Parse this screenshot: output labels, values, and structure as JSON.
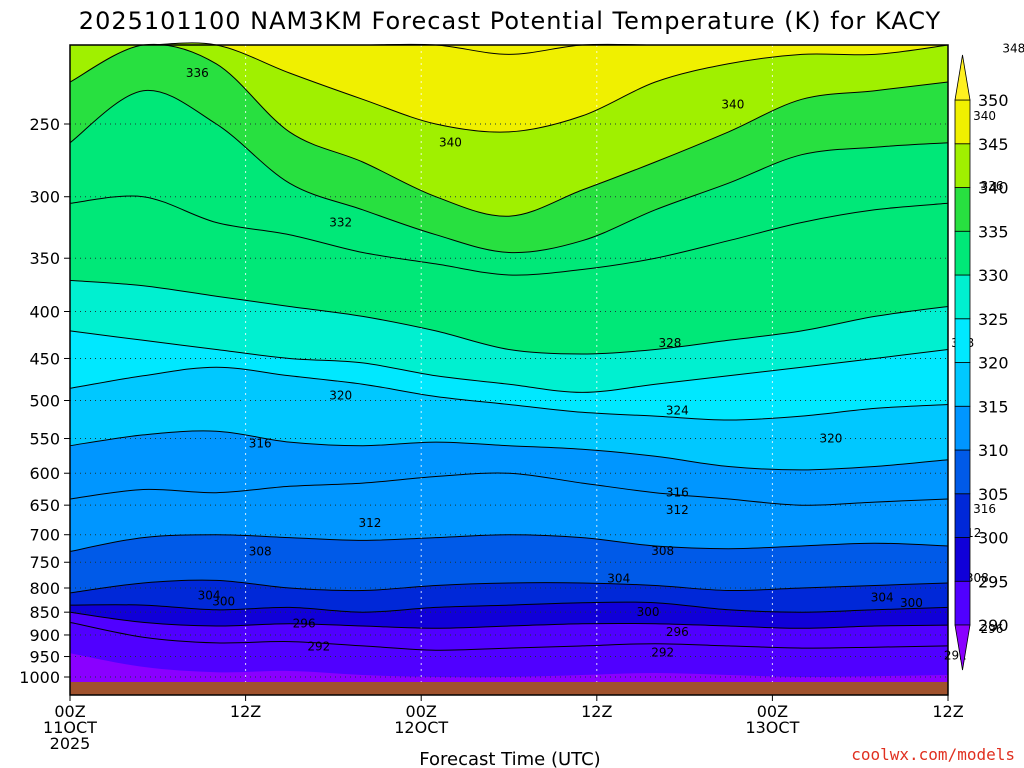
{
  "chart_data": {
    "type": "contour",
    "title": "2025101100 NAM3KM Forecast Potential Temperature (K) for KACY",
    "xlabel": "Forecast Time (UTC)",
    "credit": "coolwx.com/models",
    "x_ticks": [
      {
        "line1": "00Z",
        "line2": "11OCT",
        "line3": "2025"
      },
      {
        "line1": "12Z",
        "line2": "",
        "line3": ""
      },
      {
        "line1": "00Z",
        "line2": "12OCT",
        "line3": ""
      },
      {
        "line1": "12Z",
        "line2": "",
        "line3": ""
      },
      {
        "line1": "00Z",
        "line2": "13OCT",
        "line3": ""
      },
      {
        "line1": "12Z",
        "line2": "",
        "line3": ""
      }
    ],
    "x_range_hours": [
      0,
      60
    ],
    "y_label_unit": "hPa",
    "y_ticks": [
      250,
      300,
      350,
      400,
      450,
      500,
      550,
      600,
      650,
      700,
      750,
      800,
      850,
      900,
      950,
      1000
    ],
    "y_range": [
      200,
      1025
    ],
    "colorbar": {
      "levels": [
        290,
        295,
        300,
        305,
        310,
        315,
        320,
        325,
        330,
        335,
        340,
        345,
        350
      ],
      "labels": [
        "290",
        "295",
        "300",
        "305",
        "310",
        "315",
        "320",
        "325",
        "330",
        "335",
        "340",
        "345",
        "350"
      ],
      "colors": [
        "#8a00ff",
        "#5000ff",
        "#1000d8",
        "#0028d8",
        "#005ae8",
        "#0096ff",
        "#00c8ff",
        "#00e8ff",
        "#00f0d0",
        "#00e878",
        "#28e040",
        "#a0f000",
        "#f0f000",
        "#fff020"
      ]
    },
    "isotherms": [
      {
        "value": 292,
        "label": "292",
        "pressures": [
          872,
          905,
          918,
          915,
          925,
          935,
          930,
          925,
          920,
          925,
          930,
          928,
          925
        ]
      },
      {
        "value": 296,
        "label": "296",
        "pressures": [
          850,
          872,
          880,
          875,
          880,
          885,
          880,
          875,
          875,
          880,
          885,
          880,
          878
        ]
      },
      {
        "value": 300,
        "label": "300",
        "pressures": [
          835,
          835,
          845,
          840,
          850,
          840,
          835,
          830,
          830,
          845,
          850,
          845,
          840
        ]
      },
      {
        "value": 304,
        "label": "304",
        "pressures": [
          810,
          790,
          785,
          800,
          805,
          795,
          790,
          790,
          795,
          805,
          800,
          795,
          790
        ]
      },
      {
        "value": 308,
        "label": "308",
        "pressures": [
          730,
          705,
          700,
          705,
          710,
          705,
          700,
          705,
          720,
          725,
          720,
          715,
          720
        ]
      },
      {
        "value": 312,
        "label": "312",
        "pressures": [
          640,
          625,
          630,
          620,
          615,
          605,
          600,
          615,
          630,
          640,
          650,
          645,
          640
        ]
      },
      {
        "value": 316,
        "label": "316",
        "pressures": [
          560,
          545,
          540,
          555,
          560,
          555,
          560,
          565,
          575,
          590,
          595,
          590,
          580
        ]
      },
      {
        "value": 320,
        "label": "320",
        "pressures": [
          485,
          470,
          460,
          470,
          480,
          495,
          505,
          515,
          520,
          525,
          520,
          510,
          505
        ]
      },
      {
        "value": 324,
        "label": "324",
        "pressures": [
          420,
          430,
          440,
          450,
          455,
          470,
          480,
          490,
          480,
          470,
          460,
          450,
          440
        ]
      },
      {
        "value": 328,
        "label": "328",
        "pressures": [
          370,
          375,
          385,
          395,
          405,
          420,
          440,
          445,
          440,
          430,
          420,
          405,
          395
        ]
      },
      {
        "value": 332,
        "label": "332",
        "pressures": [
          305,
          300,
          320,
          330,
          345,
          355,
          365,
          360,
          350,
          335,
          320,
          310,
          305
        ]
      },
      {
        "value": 336,
        "label": "336",
        "pressures": [
          262,
          230,
          250,
          290,
          310,
          330,
          345,
          335,
          310,
          290,
          270,
          265,
          262
        ]
      },
      {
        "value": 340,
        "label": "340",
        "pressures": [
          225,
          205,
          215,
          255,
          275,
          300,
          315,
          295,
          275,
          255,
          235,
          230,
          225
        ]
      },
      {
        "value": 344,
        "label": "344",
        "pressures": [
          205,
          200,
          205,
          220,
          235,
          250,
          255,
          245,
          225,
          215,
          210,
          210,
          205
        ]
      },
      {
        "value": 348,
        "label": "348",
        "pressures": [
          200,
          200,
          200,
          200,
          200,
          205,
          210,
          205,
          205,
          200,
          202,
          203,
          202
        ]
      }
    ],
    "label_positions": [
      {
        "text": "336",
        "hour": 8.7,
        "p": 220
      },
      {
        "text": "340",
        "hour": 26.0,
        "p": 262
      },
      {
        "text": "340",
        "hour": 45.3,
        "p": 238
      },
      {
        "text": "340",
        "hour": 62.5,
        "p": 245
      },
      {
        "text": "348",
        "hour": 64.5,
        "p": 207
      },
      {
        "text": "336",
        "hour": 63.0,
        "p": 292
      },
      {
        "text": "332",
        "hour": 18.5,
        "p": 320
      },
      {
        "text": "328",
        "hour": 41.0,
        "p": 433
      },
      {
        "text": "328",
        "hour": 61.0,
        "p": 433
      },
      {
        "text": "320",
        "hour": 18.5,
        "p": 494
      },
      {
        "text": "324",
        "hour": 41.5,
        "p": 513
      },
      {
        "text": "316",
        "hour": 13.0,
        "p": 557
      },
      {
        "text": "320",
        "hour": 52.0,
        "p": 550
      },
      {
        "text": "316",
        "hour": 41.5,
        "p": 630
      },
      {
        "text": "312",
        "hour": 41.5,
        "p": 658
      },
      {
        "text": "316",
        "hour": 62.5,
        "p": 656
      },
      {
        "text": "312",
        "hour": 20.5,
        "p": 680
      },
      {
        "text": "312",
        "hour": 61.5,
        "p": 697
      },
      {
        "text": "308",
        "hour": 13.0,
        "p": 730
      },
      {
        "text": "308",
        "hour": 40.5,
        "p": 729
      },
      {
        "text": "308",
        "hour": 62.0,
        "p": 780
      },
      {
        "text": "304",
        "hour": 37.5,
        "p": 781
      },
      {
        "text": "304",
        "hour": 9.5,
        "p": 815
      },
      {
        "text": "300",
        "hour": 10.5,
        "p": 828
      },
      {
        "text": "304",
        "hour": 55.5,
        "p": 819
      },
      {
        "text": "300",
        "hour": 57.5,
        "p": 831
      },
      {
        "text": "300",
        "hour": 39.5,
        "p": 850
      },
      {
        "text": "296",
        "hour": 16.0,
        "p": 875
      },
      {
        "text": "296",
        "hour": 41.5,
        "p": 893
      },
      {
        "text": "296",
        "hour": 63.0,
        "p": 887
      },
      {
        "text": "292",
        "hour": 17.0,
        "p": 926
      },
      {
        "text": "292",
        "hour": 40.5,
        "p": 941
      },
      {
        "text": "292",
        "hour": 60.5,
        "p": 948
      }
    ]
  }
}
